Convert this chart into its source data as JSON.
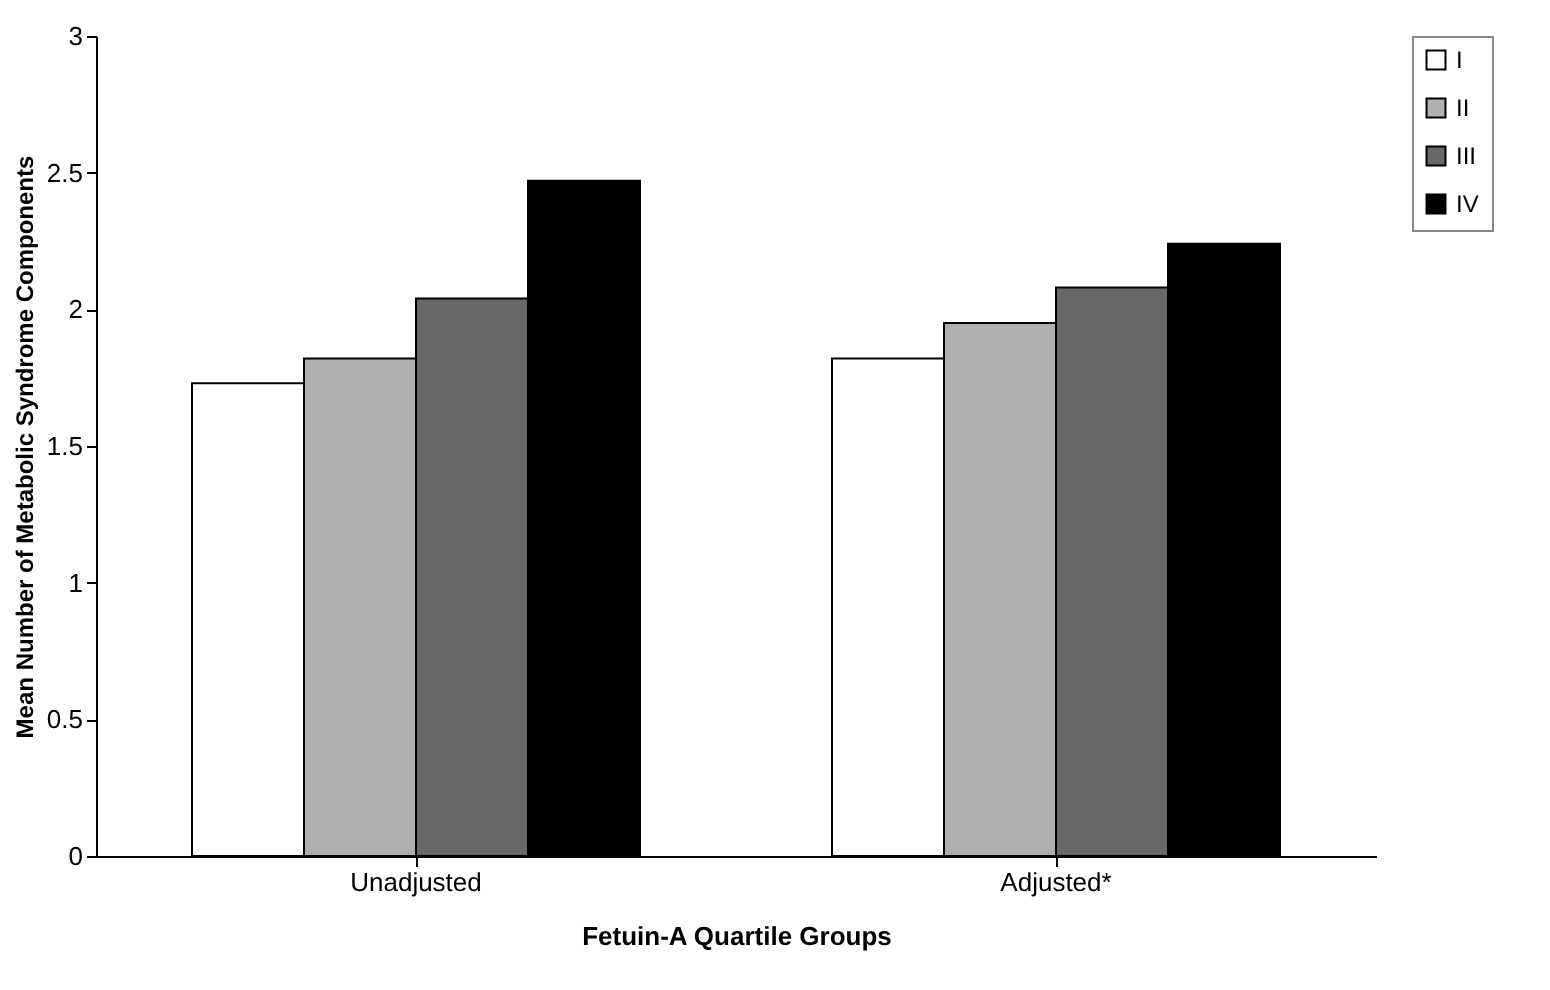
{
  "chart_data": {
    "type": "bar",
    "xlabel": "Fetuin-A Quartile Groups",
    "ylabel": "Mean Number of Metabolic Syndrome Components",
    "categories": [
      "Unadjusted",
      "Adjusted*"
    ],
    "series": [
      {
        "name": "I",
        "color": "#ffffff",
        "values": [
          1.73,
          1.82
        ]
      },
      {
        "name": "II",
        "color": "#b0b0b0",
        "values": [
          1.82,
          1.95
        ]
      },
      {
        "name": "III",
        "color": "#686868",
        "values": [
          2.04,
          2.08
        ]
      },
      {
        "name": "IV",
        "color": "#000000",
        "values": [
          2.47,
          2.24
        ]
      }
    ],
    "ylim": [
      0,
      3
    ],
    "yticks": [
      0,
      0.5,
      1,
      1.5,
      2,
      2.5,
      3
    ],
    "grid": false,
    "legend": "right"
  }
}
